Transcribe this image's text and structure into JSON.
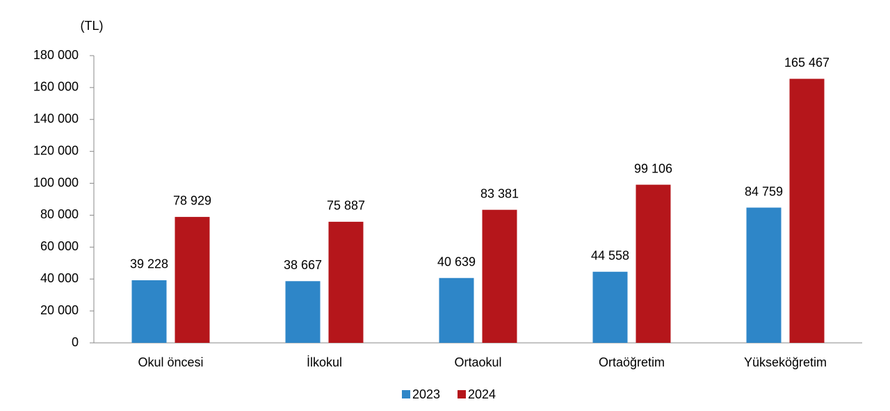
{
  "chart_data": {
    "type": "bar",
    "y_label": "(TL)",
    "categories": [
      "Okul öncesi",
      "İlkokul",
      "Ortaokul",
      "Ortaöğretim",
      "Yükseköğretim"
    ],
    "series": [
      {
        "name": "2023",
        "color": "#2e86c8",
        "values": [
          39228,
          38667,
          40639,
          44558,
          84759
        ],
        "value_labels": [
          "39 228",
          "38 667",
          "40 639",
          "44 558",
          "84 759"
        ]
      },
      {
        "name": "2024",
        "color": "#b5161b",
        "values": [
          78929,
          75887,
          83381,
          99106,
          165467
        ],
        "value_labels": [
          "78 929",
          "75 887",
          "83 381",
          "99 106",
          "165 467"
        ]
      }
    ],
    "ylim": [
      0,
      180000
    ],
    "yticks": [
      0,
      {
        "value": 20000,
        "label": "20 000"
      },
      {
        "value": 40000,
        "label": "40 000"
      },
      {
        "value": 60000,
        "label": "60 000"
      },
      {
        "value": 80000,
        "label": "80 000"
      },
      {
        "value": 100000,
        "label": "100 000"
      },
      {
        "value": 120000,
        "label": "120 000"
      },
      {
        "value": 140000,
        "label": "140 000"
      },
      {
        "value": 160000,
        "label": "160 000"
      },
      {
        "value": 180000,
        "label": "180 000"
      }
    ],
    "grid": false,
    "legend": "bottom"
  }
}
